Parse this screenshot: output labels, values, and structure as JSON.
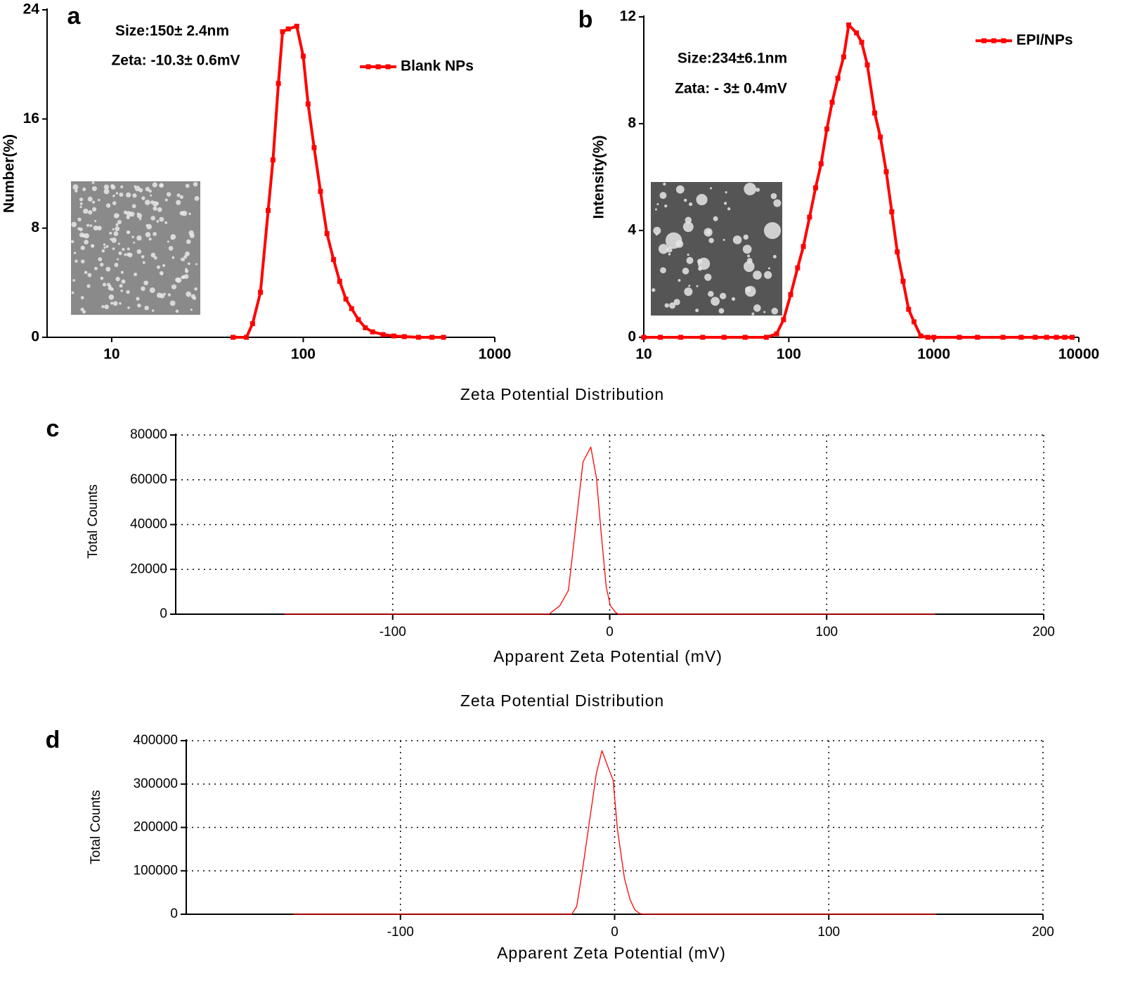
{
  "chart_data": [
    {
      "type": "line",
      "panel_label": "a",
      "ylabel": "Number(%)",
      "annotations": [
        "Size:150± 2.4nm",
        "Zeta: -10.3± 0.6mV"
      ],
      "xscale": "log",
      "xlim": [
        4.6,
        1000
      ],
      "xticks": [
        10,
        100,
        1000
      ],
      "ylim": [
        0,
        24
      ],
      "yticks": [
        0,
        8,
        16,
        24
      ],
      "grid": false,
      "legend": "upper right",
      "marker": "square",
      "x": [
        43,
        50.5,
        54.4,
        59.8,
        65.6,
        69.5,
        74.2,
        78,
        83.6,
        92.5,
        100,
        106,
        114,
        123,
        133,
        144,
        155,
        167,
        179,
        194,
        211,
        230,
        261,
        297,
        337,
        400,
        470,
        540
      ],
      "series": [
        {
          "name": "Blank NPs",
          "color": "#ff0000",
          "values": [
            0,
            0,
            1.0,
            3.3,
            9.3,
            13.0,
            18.6,
            22.4,
            22.6,
            22.8,
            20.6,
            17.1,
            13.9,
            10.7,
            7.6,
            5.7,
            4.1,
            2.8,
            2.1,
            1.3,
            0.7,
            0.4,
            0.2,
            0.1,
            0.05,
            0,
            0,
            0
          ]
        }
      ]
    },
    {
      "type": "line",
      "panel_label": "b",
      "ylabel": "Intensity(%)",
      "annotations": [
        "Size:234±6.1nm",
        "Zata: - 3± 0.4mV"
      ],
      "xscale": "log",
      "xlim": [
        10,
        10000
      ],
      "xticks": [
        10,
        100,
        1000,
        10000
      ],
      "ylim": [
        0,
        12
      ],
      "yticks": [
        0,
        4,
        8,
        12
      ],
      "grid": false,
      "legend": "upper right",
      "marker": "square",
      "x": [
        10,
        13,
        18,
        25.5,
        35.8,
        50,
        70,
        82.5,
        92,
        103,
        115,
        126,
        139,
        153,
        167,
        183,
        199,
        218,
        239,
        259,
        293,
        318,
        348,
        391,
        428,
        470,
        513,
        560,
        614,
        670,
        730,
        812,
        910,
        1000,
        1500,
        2000,
        3000,
        4000,
        5000,
        6000,
        7000,
        8000,
        9000
      ],
      "series": [
        {
          "name": "EPI/NPs",
          "color": "#ff0000",
          "values": [
            0,
            0,
            0,
            0,
            0,
            0,
            0,
            0.13,
            0.66,
            1.6,
            2.6,
            3.4,
            4.5,
            5.6,
            6.5,
            7.8,
            8.8,
            9.7,
            10.5,
            11.7,
            11.4,
            11.05,
            10.2,
            8.4,
            7.5,
            6.2,
            4.7,
            3.2,
            2.1,
            1.05,
            0.58,
            0.05,
            0,
            0,
            0,
            0,
            0,
            0,
            0,
            0,
            0,
            0,
            0
          ]
        }
      ]
    },
    {
      "type": "line",
      "panel_label": "c",
      "title": "Zeta Potential Distribution",
      "xlabel": "Apparent Zeta Potential (mV)",
      "ylabel": "Total Counts",
      "xlim": [
        -200,
        200
      ],
      "xticks": [
        -100,
        0,
        100,
        200
      ],
      "ylim": [
        0,
        80000
      ],
      "yticks": [
        0,
        20000,
        40000,
        60000,
        80000
      ],
      "grid": true,
      "x": [
        -150,
        -28,
        -23,
        -19,
        -12.3,
        -8.7,
        -6.1,
        -3.9,
        -1.6,
        0.3,
        2.9,
        4.2,
        150
      ],
      "series": [
        {
          "color": "#ff0000",
          "values": [
            0,
            0,
            3760,
            10700,
            68000,
            74600,
            60800,
            35800,
            12200,
            3800,
            600,
            0,
            0
          ]
        }
      ]
    },
    {
      "type": "line",
      "panel_label": "d",
      "title": "Zeta Potential Distribution",
      "xlabel": "Apparent Zeta Potential (mV)",
      "ylabel": "Total Counts",
      "xlim": [
        -200,
        200
      ],
      "xticks": [
        -100,
        0,
        100,
        200
      ],
      "ylim": [
        0,
        400000
      ],
      "yticks": [
        0,
        100000,
        200000,
        300000,
        400000
      ],
      "grid": true,
      "x": [
        -150,
        -20,
        -17.7,
        -15.1,
        -11.8,
        -8.5,
        -5.9,
        -3.3,
        -0.7,
        1.3,
        4.6,
        7.2,
        9.5,
        11.8,
        14.4,
        150
      ],
      "series": [
        {
          "color": "#ff0000",
          "values": [
            0,
            0,
            17800,
            98800,
            212000,
            325000,
            377000,
            342000,
            309000,
            196000,
            82600,
            34000,
            9700,
            1600,
            0,
            0
          ]
        }
      ]
    }
  ]
}
